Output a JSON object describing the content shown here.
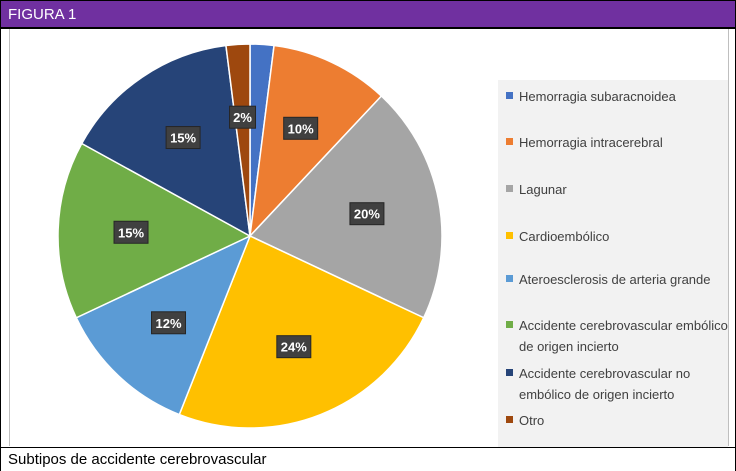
{
  "header": {
    "title": "FIGURA 1"
  },
  "caption": {
    "text": "Subtipos de accidente cerebrovascular"
  },
  "colors": {
    "header_bg": "#7030a0",
    "label_bg": "#404040",
    "legend_bg": "#f2f2f2"
  },
  "chart_data": {
    "type": "pie",
    "title": "",
    "legend_position": "right",
    "slices": [
      {
        "label": "Hemorragia subaracnoidea",
        "value": 2,
        "display": "",
        "color": "#4472c4"
      },
      {
        "label": "Hemorragia intracerebral",
        "value": 10,
        "display": "10%",
        "color": "#ed7d31"
      },
      {
        "label": "Lagunar",
        "value": 20,
        "display": "20%",
        "color": "#a5a5a5"
      },
      {
        "label": "Cardioembólico",
        "value": 24,
        "display": "24%",
        "color": "#ffc000"
      },
      {
        "label": "Ateroesclerosis de arteria grande",
        "value": 12,
        "display": "12%",
        "color": "#5b9bd5"
      },
      {
        "label": "Accidente cerebrovascular embólico de origen incierto",
        "value": 15,
        "display": "15%",
        "color": "#70ad47"
      },
      {
        "label": "Accidente cerebrovascular no embólico de origen incierto",
        "value": 15,
        "display": "15%",
        "color": "#264478"
      },
      {
        "label": "Otro",
        "value": 2,
        "display": "2%",
        "color": "#9e480e"
      }
    ]
  }
}
